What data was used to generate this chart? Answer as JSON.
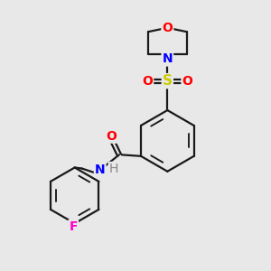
{
  "background_color": "#e8e8e8",
  "bond_color": "#1a1a1a",
  "atom_colors": {
    "O": "#ff0000",
    "N": "#0000ff",
    "S": "#cccc00",
    "F": "#ff00cc",
    "H": "#888888"
  },
  "figsize": [
    3.0,
    3.0
  ],
  "dpi": 100,
  "bond_lw": 1.6,
  "font_size_atom": 10,
  "font_size_S": 11
}
